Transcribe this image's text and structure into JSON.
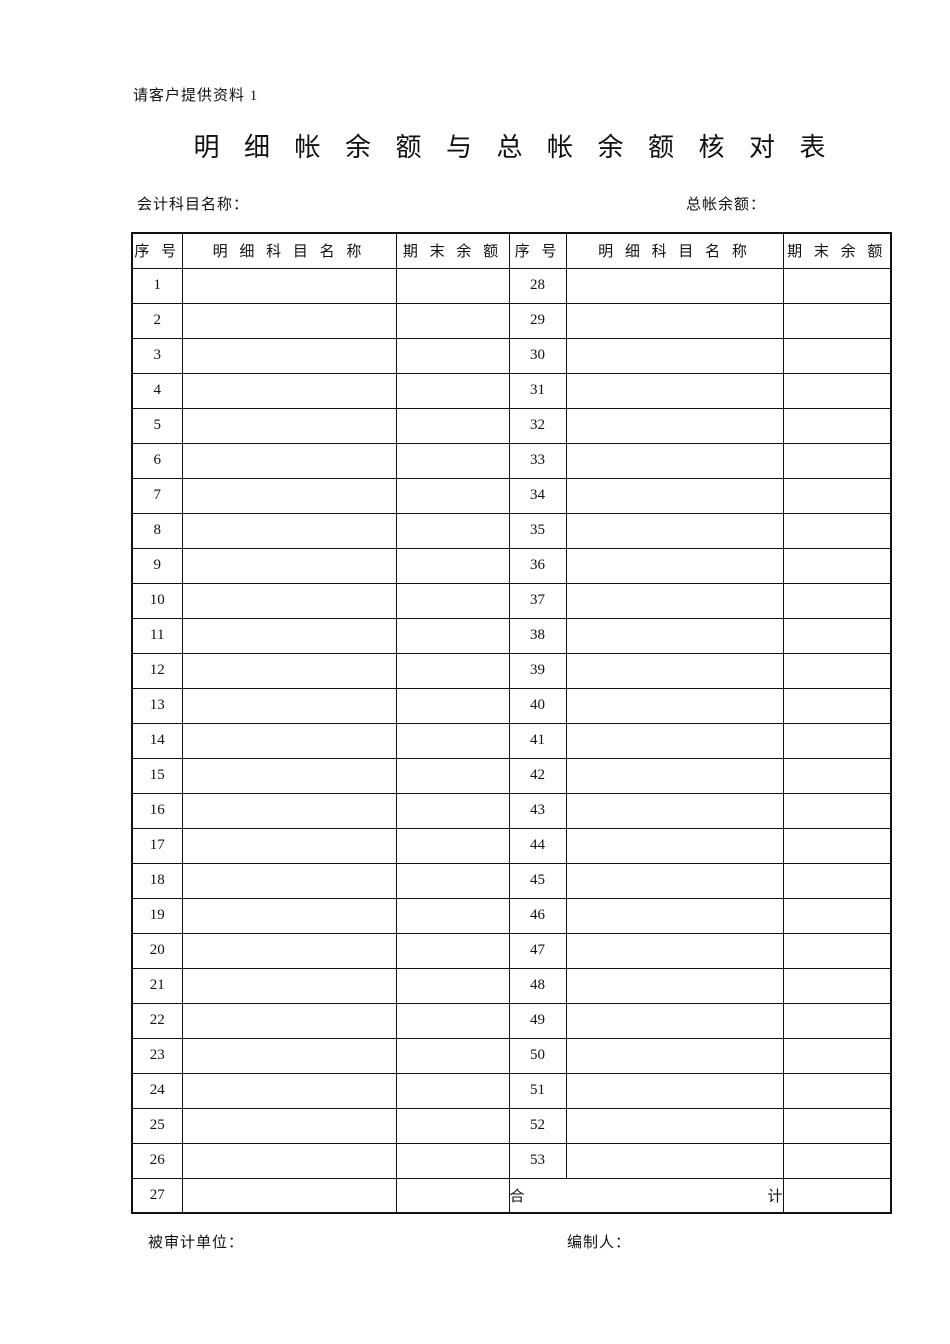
{
  "page": {
    "doc_label": "请客户提供资料 1",
    "title": "明 细 帐 余 额 与 总 帐 余 额 核 对 表",
    "field_left_label": "会计科目名称：",
    "field_right_label": "总帐余额：",
    "footer_left_label": "被审计单位：",
    "footer_right_label": "编制人："
  },
  "table": {
    "headers": [
      "序 号",
      "明 细 科 目 名 称",
      "期 末 余 额",
      "序 号",
      "明 细 科 目 名 称",
      "期 末 余 额"
    ],
    "rows": [
      {
        "left_no": "1",
        "right_no": "28"
      },
      {
        "left_no": "2",
        "right_no": "29"
      },
      {
        "left_no": "3",
        "right_no": "30"
      },
      {
        "left_no": "4",
        "right_no": "31"
      },
      {
        "left_no": "5",
        "right_no": "32"
      },
      {
        "left_no": "6",
        "right_no": "33"
      },
      {
        "left_no": "7",
        "right_no": "34"
      },
      {
        "left_no": "8",
        "right_no": "35"
      },
      {
        "left_no": "9",
        "right_no": "36"
      },
      {
        "left_no": "10",
        "right_no": "37"
      },
      {
        "left_no": "11",
        "right_no": "38"
      },
      {
        "left_no": "12",
        "right_no": "39"
      },
      {
        "left_no": "13",
        "right_no": "40"
      },
      {
        "left_no": "14",
        "right_no": "41"
      },
      {
        "left_no": "15",
        "right_no": "42"
      },
      {
        "left_no": "16",
        "right_no": "43"
      },
      {
        "left_no": "17",
        "right_no": "44"
      },
      {
        "left_no": "18",
        "right_no": "45"
      },
      {
        "left_no": "19",
        "right_no": "46"
      },
      {
        "left_no": "20",
        "right_no": "47"
      },
      {
        "left_no": "21",
        "right_no": "48"
      },
      {
        "left_no": "22",
        "right_no": "49"
      },
      {
        "left_no": "23",
        "right_no": "50"
      },
      {
        "left_no": "24",
        "right_no": "51"
      },
      {
        "left_no": "25",
        "right_no": "52"
      },
      {
        "left_no": "26",
        "right_no": "53"
      }
    ],
    "last_row_left_no": "27",
    "total_label_left": "合",
    "total_label_right": "计",
    "empty_cell_value": ""
  }
}
